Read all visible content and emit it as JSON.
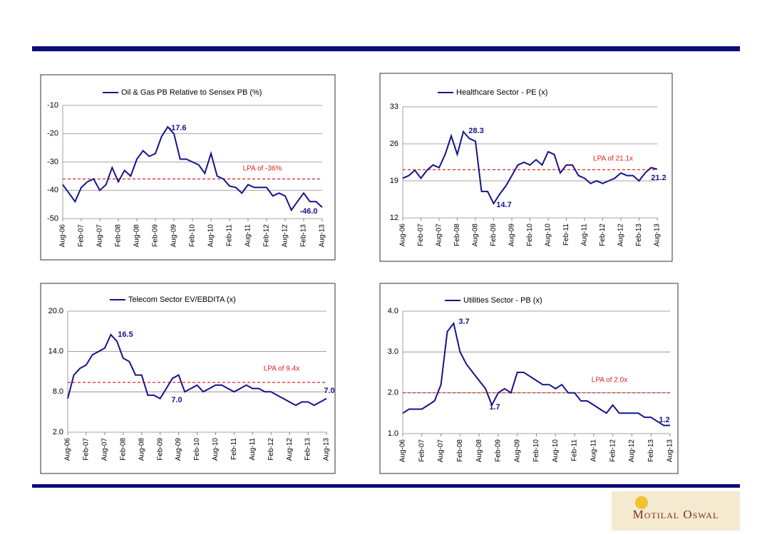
{
  "logo": "Motilal Oswal",
  "chart_data": [
    {
      "type": "line",
      "categories": [
        "Aug-06",
        null,
        null,
        "Feb-07",
        null,
        null,
        "Aug-07",
        null,
        null,
        "Feb-08",
        null,
        null,
        "Aug-08",
        null,
        null,
        "Feb-09",
        null,
        null,
        "Aug-09",
        null,
        null,
        "Feb-10",
        null,
        null,
        "Aug-10",
        null,
        null,
        "Feb-11",
        null,
        null,
        "Aug-11",
        null,
        null,
        "Feb-12",
        null,
        null,
        "Aug-12",
        null,
        null,
        "Feb-13",
        null,
        null,
        "Aug-13"
      ],
      "series": [
        {
          "name": "Oil & Gas PB Relative to Sensex PB (%)",
          "color": "#14148c",
          "values": [
            -38,
            -41,
            -44,
            -39,
            -37,
            -36,
            -40,
            -38,
            -32,
            -37,
            -33,
            -35,
            -29,
            -26,
            -28,
            -27,
            -21,
            -17.6,
            -20,
            -29,
            -29,
            -30,
            -31,
            -34,
            -27,
            -35,
            -36,
            -38.5,
            -39,
            -41,
            -38,
            -39,
            -39,
            -39,
            -42,
            -41,
            -42,
            -47,
            -44,
            -41,
            -44,
            -44,
            -46.0
          ]
        }
      ],
      "ylim": [
        -50,
        -10
      ],
      "yticks": [
        -10,
        -20,
        -30,
        -40,
        -50
      ],
      "grid": true,
      "reference_line": {
        "value": -36,
        "label": "LPA of -36%",
        "color": "#e02020"
      },
      "annotations": [
        "-17.6",
        "-46.0"
      ]
    },
    {
      "type": "line",
      "categories": [
        "Aug-06",
        null,
        null,
        "Feb-07",
        null,
        null,
        "Aug-07",
        null,
        null,
        "Feb-08",
        null,
        null,
        "Aug-08",
        null,
        null,
        "Feb-09",
        null,
        null,
        "Aug-09",
        null,
        null,
        "Feb-10",
        null,
        null,
        "Aug-10",
        null,
        null,
        "Feb-11",
        null,
        null,
        "Aug-11",
        null,
        null,
        "Feb-12",
        null,
        null,
        "Aug-12",
        null,
        null,
        "Feb-13",
        null,
        null,
        "Aug-13"
      ],
      "series": [
        {
          "name": "Healthcare Sector - PE (x)",
          "color": "#14148c",
          "values": [
            19.5,
            20,
            21,
            19.5,
            21,
            22,
            21.5,
            24,
            27.5,
            24,
            28.3,
            27,
            26.5,
            17,
            17,
            14.7,
            16.5,
            18,
            20,
            22,
            22.5,
            22,
            23,
            22,
            24.5,
            24,
            20.5,
            22,
            22,
            20,
            19.5,
            18.5,
            19,
            18.5,
            19,
            19.5,
            20.5,
            20,
            20,
            19,
            20.5,
            21.5,
            21.2
          ]
        }
      ],
      "ylim": [
        12,
        33
      ],
      "yticks": [
        12,
        19,
        26,
        33
      ],
      "grid": true,
      "reference_line": {
        "value": 21.1,
        "label": "LPA of 21.1x",
        "color": "#e02020"
      },
      "annotations": [
        "28.3",
        "14.7",
        "21.2"
      ]
    },
    {
      "type": "line",
      "categories": [
        "Aug-06",
        null,
        null,
        "Feb-07",
        null,
        null,
        "Aug-07",
        null,
        null,
        "Feb-08",
        null,
        null,
        "Aug-08",
        null,
        null,
        "Feb-09",
        null,
        null,
        "Aug-09",
        null,
        null,
        "Feb-10",
        null,
        null,
        "Aug-10",
        null,
        null,
        "Feb-11",
        null,
        null,
        "Aug-11",
        null,
        null,
        "Feb-12",
        null,
        null,
        "Aug-12",
        null,
        null,
        "Feb-13",
        null,
        null,
        "Aug-13"
      ],
      "series": [
        {
          "name": "Telecom Sector EV/EBDITA (x)",
          "color": "#14148c",
          "values": [
            7,
            10.5,
            11.5,
            12,
            13.5,
            14,
            14.5,
            16.5,
            15.5,
            13,
            12.5,
            10.5,
            10.5,
            7.5,
            7.5,
            7,
            8.5,
            10,
            10.5,
            8,
            8.5,
            9,
            8,
            8.5,
            9,
            9,
            8.5,
            8,
            8.5,
            9,
            8.5,
            8.5,
            8,
            8,
            7.5,
            7,
            6.5,
            6,
            6.5,
            6.5,
            6,
            6.5,
            7.0
          ]
        }
      ],
      "ylim": [
        2,
        20
      ],
      "yticks": [
        {
          "value": 2,
          "label": "2.0"
        },
        {
          "value": 8,
          "label": "8.0"
        },
        {
          "value": 14,
          "label": "14.0"
        },
        {
          "value": 20,
          "label": "20.0"
        }
      ],
      "grid": true,
      "reference_line": {
        "value": 9.4,
        "label": "LPA of 9.4x",
        "color": "#e02020"
      },
      "annotations": [
        "16.5",
        "7.0",
        "7.0"
      ]
    },
    {
      "type": "line",
      "categories": [
        "Aug-06",
        null,
        null,
        "Feb-07",
        null,
        null,
        "Aug-07",
        null,
        null,
        "Feb-08",
        null,
        null,
        "Aug-08",
        null,
        null,
        "Feb-09",
        null,
        null,
        "Aug-09",
        null,
        null,
        "Feb-10",
        null,
        null,
        "Aug-10",
        null,
        null,
        "Feb-11",
        null,
        null,
        "Aug-11",
        null,
        null,
        "Feb-12",
        null,
        null,
        "Aug-12",
        null,
        null,
        "Feb-13",
        null,
        null,
        "Aug-13"
      ],
      "series": [
        {
          "name": "Utilities Sector - PB (x)",
          "color": "#14148c",
          "values": [
            1.5,
            1.6,
            1.6,
            1.6,
            1.7,
            1.8,
            2.2,
            3.5,
            3.7,
            3.0,
            2.7,
            2.5,
            2.3,
            2.1,
            1.7,
            2.0,
            2.1,
            2.0,
            2.5,
            2.5,
            2.4,
            2.3,
            2.2,
            2.2,
            2.1,
            2.2,
            2.0,
            2.0,
            1.8,
            1.8,
            1.7,
            1.6,
            1.5,
            1.7,
            1.5,
            1.5,
            1.5,
            1.5,
            1.4,
            1.4,
            1.3,
            1.2,
            1.2
          ]
        }
      ],
      "ylim": [
        1,
        4
      ],
      "yticks": [
        {
          "value": 1,
          "label": "1.0"
        },
        {
          "value": 2,
          "label": "2.0"
        },
        {
          "value": 3,
          "label": "3.0"
        },
        {
          "value": 4,
          "label": "4.0"
        }
      ],
      "grid": true,
      "reference_line": {
        "value": 2.0,
        "label": "LPA of 2.0x",
        "color": "#e02020"
      },
      "annotations": [
        "3.7",
        "1.7",
        "1.2"
      ]
    }
  ]
}
